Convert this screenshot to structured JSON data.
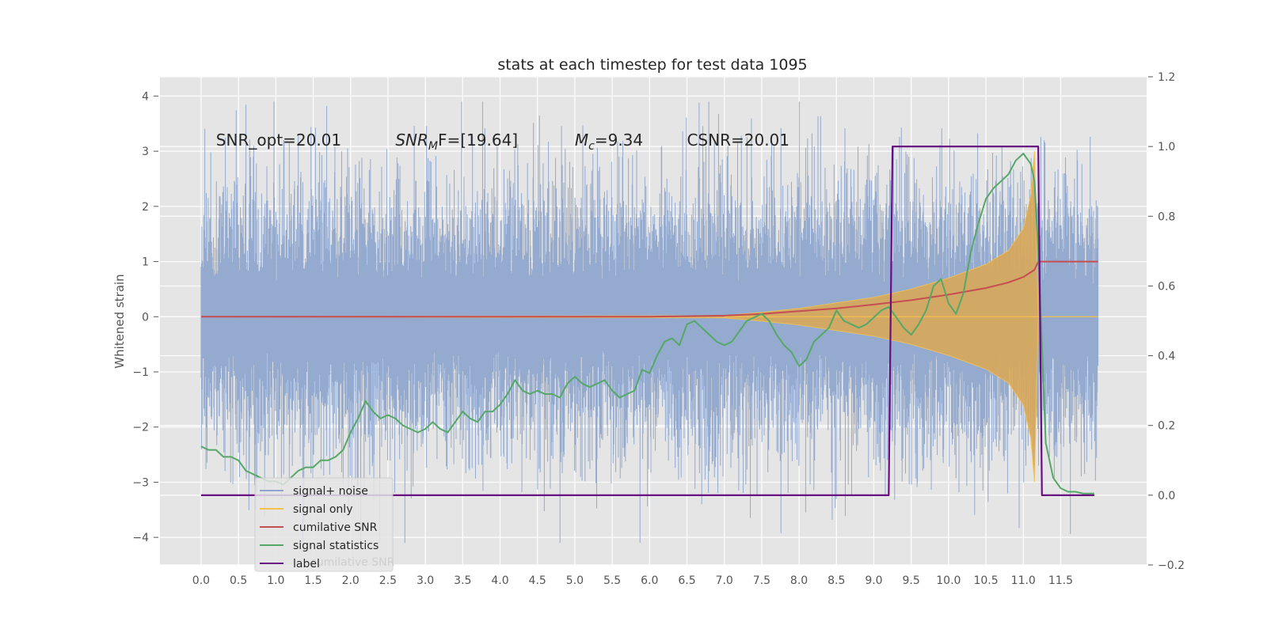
{
  "chart_data": {
    "type": "line",
    "title": "stats at each timestep for test data 1095",
    "ylabel": "Whitened strain",
    "xlabel": "",
    "xlim": [
      -0.55,
      12.65
    ],
    "ylim": [
      -4.5,
      4.35
    ],
    "y2lim": [
      -0.2,
      1.2
    ],
    "grid": true,
    "legend_placement": "lower-left",
    "x_ticks": [
      "0.0",
      "0.5",
      "1.0",
      "1.5",
      "2.0",
      "2.5",
      "3.0",
      "3.5",
      "4.0",
      "4.5",
      "5.0",
      "5.5",
      "6.0",
      "6.5",
      "7.0",
      "7.5",
      "8.0",
      "8.5",
      "9.0",
      "9.5",
      "10.0",
      "10.5",
      "11.0",
      "11.5"
    ],
    "y_ticks": [
      "4",
      "3",
      "2",
      "1",
      "0",
      "−1",
      "−2",
      "−3",
      "−4"
    ],
    "y2_ticks": [
      "1.2",
      "1.0",
      "0.8",
      "0.6",
      "0.4",
      "0.2",
      "0.0",
      "−0.2"
    ],
    "annotations": [
      {
        "text": "SNR_opt=20.01",
        "x": 0.2,
        "y": 3.2
      },
      {
        "pre": "SNR",
        "sub": "M",
        "post": "F=[19.64]",
        "x": 2.6,
        "y": 3.2
      },
      {
        "pre": "M",
        "sub": "c",
        "post": "=9.34",
        "x": 5.0,
        "y": 3.2
      },
      {
        "text": "CSNR=20.01",
        "x": 6.5,
        "y": 3.2
      }
    ],
    "series": [
      {
        "name": "signal+ noise",
        "color": "#8fa6cc",
        "x_range": [
          0,
          12
        ],
        "note_visual": "dense noise, typical amplitude within about ±2.5"
      },
      {
        "name": "signal only",
        "color": "#f5c14e",
        "x": [
          0,
          7.0,
          7.5,
          8.0,
          8.5,
          9.0,
          9.5,
          10.0,
          10.5,
          10.8,
          11.0,
          11.1,
          11.15,
          11.2
        ],
        "envelope": [
          0,
          0.02,
          0.08,
          0.15,
          0.25,
          0.35,
          0.5,
          0.7,
          0.95,
          1.2,
          1.6,
          2.2,
          3.0,
          0
        ]
      },
      {
        "name": "cumilative SNR",
        "color": "#c44e52",
        "x": [
          0,
          6.0,
          7.0,
          7.5,
          8.0,
          8.5,
          9.0,
          9.5,
          10.0,
          10.5,
          10.8,
          11.0,
          11.15,
          11.2,
          11.22,
          12.0
        ],
        "y": [
          0,
          0,
          0.02,
          0.05,
          0.1,
          0.15,
          0.22,
          0.3,
          0.4,
          0.52,
          0.62,
          0.72,
          0.85,
          1.0,
          1.0,
          1.0
        ]
      },
      {
        "name": "signal statistics",
        "axis": "right",
        "color": "#55a868",
        "x": [
          0,
          0.1,
          0.2,
          0.3,
          0.4,
          0.5,
          0.6,
          0.7,
          0.8,
          0.9,
          1.0,
          1.1,
          1.2,
          1.3,
          1.4,
          1.5,
          1.6,
          1.7,
          1.8,
          1.9,
          2.0,
          2.1,
          2.2,
          2.3,
          2.4,
          2.5,
          2.6,
          2.7,
          2.8,
          2.9,
          3.0,
          3.1,
          3.2,
          3.3,
          3.4,
          3.5,
          3.6,
          3.7,
          3.8,
          3.9,
          4.0,
          4.1,
          4.2,
          4.3,
          4.4,
          4.5,
          4.6,
          4.7,
          4.8,
          4.9,
          5.0,
          5.1,
          5.2,
          5.3,
          5.4,
          5.5,
          5.6,
          5.7,
          5.8,
          5.9,
          6.0,
          6.1,
          6.2,
          6.3,
          6.4,
          6.5,
          6.6,
          6.7,
          6.8,
          6.9,
          7.0,
          7.1,
          7.2,
          7.3,
          7.4,
          7.5,
          7.6,
          7.7,
          7.8,
          7.9,
          8.0,
          8.1,
          8.2,
          8.3,
          8.4,
          8.5,
          8.6,
          8.7,
          8.8,
          8.9,
          9.0,
          9.1,
          9.2,
          9.3,
          9.4,
          9.5,
          9.6,
          9.7,
          9.8,
          9.9,
          10.0,
          10.1,
          10.2,
          10.3,
          10.4,
          10.5,
          10.6,
          10.7,
          10.8,
          10.9,
          11.0,
          11.1,
          11.15,
          11.2,
          11.3,
          11.4,
          11.5,
          11.6,
          11.7,
          11.8,
          11.95
        ],
        "y": [
          0.14,
          0.13,
          0.13,
          0.11,
          0.11,
          0.1,
          0.07,
          0.06,
          0.05,
          0.04,
          0.04,
          0.03,
          0.05,
          0.07,
          0.08,
          0.08,
          0.1,
          0.1,
          0.11,
          0.13,
          0.18,
          0.22,
          0.27,
          0.24,
          0.22,
          0.23,
          0.22,
          0.2,
          0.19,
          0.18,
          0.19,
          0.21,
          0.19,
          0.18,
          0.21,
          0.24,
          0.22,
          0.21,
          0.24,
          0.24,
          0.26,
          0.29,
          0.33,
          0.3,
          0.29,
          0.3,
          0.29,
          0.29,
          0.28,
          0.32,
          0.34,
          0.32,
          0.31,
          0.32,
          0.33,
          0.3,
          0.28,
          0.29,
          0.3,
          0.36,
          0.35,
          0.4,
          0.44,
          0.45,
          0.43,
          0.49,
          0.5,
          0.48,
          0.46,
          0.44,
          0.43,
          0.44,
          0.47,
          0.5,
          0.51,
          0.52,
          0.5,
          0.46,
          0.43,
          0.41,
          0.37,
          0.39,
          0.44,
          0.46,
          0.48,
          0.53,
          0.5,
          0.49,
          0.48,
          0.49,
          0.51,
          0.53,
          0.54,
          0.51,
          0.48,
          0.46,
          0.49,
          0.53,
          0.6,
          0.62,
          0.55,
          0.52,
          0.58,
          0.7,
          0.78,
          0.85,
          0.88,
          0.9,
          0.92,
          0.96,
          0.98,
          0.95,
          0.9,
          0.7,
          0.15,
          0.05,
          0.02,
          0.01,
          0.01,
          0.005,
          0.005
        ]
      },
      {
        "name": "label",
        "axis": "right",
        "color": "#6a0d83",
        "x": [
          0,
          9.2,
          9.25,
          11.2,
          11.25,
          11.95
        ],
        "y": [
          0,
          0,
          1,
          1,
          0,
          0
        ]
      }
    ],
    "legend_entries": [
      "signal+ noise",
      "signal only",
      "cumilative SNR",
      "signal statistics",
      "label"
    ],
    "legend_ghost_text": "cumilative SNR"
  }
}
